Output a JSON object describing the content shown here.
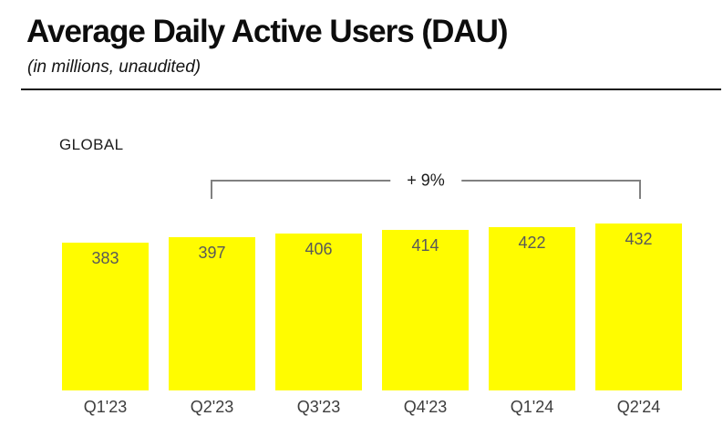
{
  "header": {
    "title": "Average Daily Active Users (DAU)",
    "subtitle": "(in millions, unaudited)"
  },
  "section_label": "GLOBAL",
  "annotation": {
    "label": "+ 9%",
    "from_category": "Q2'23",
    "to_category": "Q2'24"
  },
  "colors": {
    "bar_fill": "#FFFC00",
    "value_label": "#595959",
    "axis_label": "#3d3d3d",
    "bracket": "#808080",
    "title_text": "#0d0d0d"
  },
  "chart_data": {
    "type": "bar",
    "title": "Average Daily Active Users (DAU)",
    "subtitle": "(in millions, unaudited)",
    "region_label": "GLOBAL",
    "categories": [
      "Q1'23",
      "Q2'23",
      "Q3'23",
      "Q4'23",
      "Q1'24",
      "Q2'24"
    ],
    "values": [
      383,
      397,
      406,
      414,
      422,
      432
    ],
    "value_labels_shown": true,
    "annotation": "+ 9%",
    "annotation_span": [
      "Q2'23",
      "Q2'24"
    ],
    "xlabel": "",
    "ylabel": "",
    "ylim": [
      0,
      445
    ],
    "grid": false,
    "legend": "none"
  }
}
